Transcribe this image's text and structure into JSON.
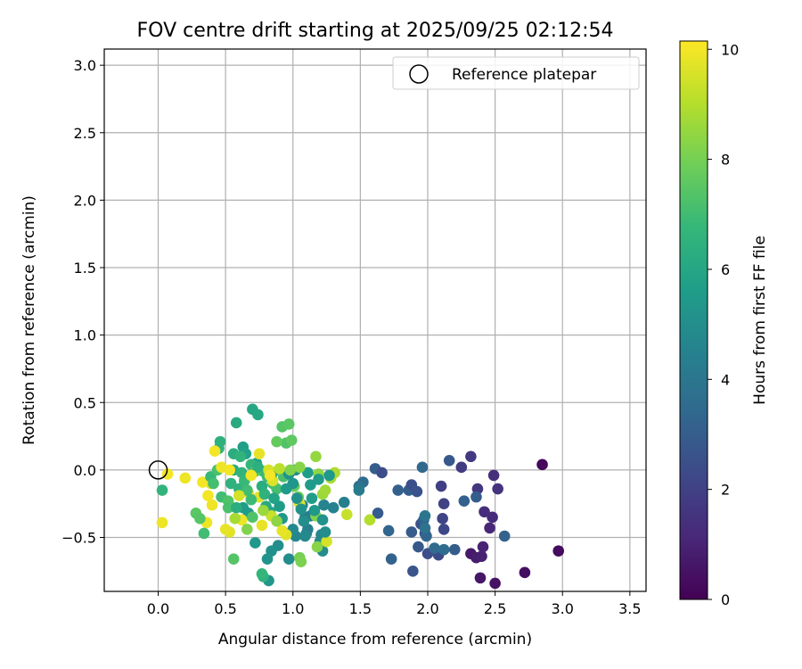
{
  "chart_data": {
    "type": "scatter",
    "title": "FOV centre drift starting at 2025/09/25 02:12:54",
    "xlabel": "Angular distance from reference (arcmin)",
    "ylabel": "Rotation from reference (arcmin)",
    "xlim": [
      -0.4,
      3.62
    ],
    "ylim": [
      -0.9,
      3.12
    ],
    "xticks": [
      0.0,
      0.5,
      1.0,
      1.5,
      2.0,
      2.5,
      3.0,
      3.5
    ],
    "xtick_labels": [
      "0.0",
      "0.5",
      "1.0",
      "1.5",
      "2.0",
      "2.5",
      "3.0",
      "3.5"
    ],
    "yticks": [
      -0.5,
      0.0,
      0.5,
      1.0,
      1.5,
      2.0,
      2.5,
      3.0
    ],
    "ytick_labels": [
      "−0.5",
      "0.0",
      "0.5",
      "1.0",
      "1.5",
      "2.0",
      "2.5",
      "3.0"
    ],
    "grid": true,
    "legend": {
      "position": "top-right",
      "label": "Reference platepar"
    },
    "reference_point": {
      "x": 0.0,
      "y": 0.0
    },
    "colorbar": {
      "label": "Hours from first FF file",
      "colormap": "viridis",
      "range": [
        0,
        10.15
      ],
      "ticks": [
        0,
        2,
        4,
        6,
        8,
        10
      ],
      "tick_labels": [
        "0",
        "2",
        "4",
        "6",
        "8",
        "10"
      ]
    },
    "colormap_stops": [
      "#440154",
      "#482878",
      "#3e4989",
      "#31688e",
      "#26828e",
      "#1f9e89",
      "#35b779",
      "#6ece58",
      "#b5de2b",
      "#fde725"
    ],
    "points": [
      [
        2.85,
        0.04,
        0.2
      ],
      [
        2.97,
        -0.6,
        0.3
      ],
      [
        2.72,
        -0.76,
        0.4
      ],
      [
        2.5,
        -0.84,
        0.5
      ],
      [
        2.39,
        -0.8,
        0.6
      ],
      [
        2.32,
        -0.62,
        0.7
      ],
      [
        2.36,
        -0.65,
        0.8
      ],
      [
        2.4,
        -0.64,
        0.9
      ],
      [
        2.41,
        -0.57,
        1.0
      ],
      [
        2.46,
        -0.43,
        1.1
      ],
      [
        2.48,
        -0.35,
        1.2
      ],
      [
        2.42,
        -0.31,
        1.3
      ],
      [
        2.49,
        -0.04,
        1.4
      ],
      [
        2.52,
        -0.14,
        1.5
      ],
      [
        2.37,
        -0.14,
        1.6
      ],
      [
        2.32,
        0.1,
        1.7
      ],
      [
        2.25,
        0.02,
        1.8
      ],
      [
        2.1,
        -0.12,
        1.9
      ],
      [
        2.12,
        -0.25,
        2.0
      ],
      [
        2.11,
        -0.36,
        2.1
      ],
      [
        2.12,
        -0.44,
        2.2
      ],
      [
        2.08,
        -0.63,
        2.3
      ],
      [
        2.0,
        -0.62,
        2.4
      ],
      [
        1.98,
        -0.47,
        2.5
      ],
      [
        1.95,
        -0.4,
        2.6
      ],
      [
        1.89,
        -0.75,
        2.7
      ],
      [
        1.93,
        -0.57,
        2.8
      ],
      [
        1.88,
        -0.46,
        2.9
      ],
      [
        1.86,
        -0.15,
        3.0
      ],
      [
        1.78,
        -0.15,
        3.1
      ],
      [
        1.73,
        -0.66,
        3.2
      ],
      [
        1.71,
        -0.45,
        3.3
      ],
      [
        1.96,
        0.02,
        3.4
      ],
      [
        1.63,
        -0.32,
        2.9
      ],
      [
        1.61,
        0.01,
        3.0
      ],
      [
        1.66,
        -0.02,
        2.4
      ],
      [
        1.88,
        -0.11,
        2.5
      ],
      [
        1.92,
        -0.16,
        2.6
      ],
      [
        1.97,
        -0.37,
        3.2
      ],
      [
        1.99,
        -0.49,
        3.3
      ],
      [
        2.05,
        -0.58,
        3.5
      ],
      [
        2.12,
        -0.59,
        3.6
      ],
      [
        2.16,
        0.07,
        2.8
      ],
      [
        2.2,
        -0.59,
        3.0
      ],
      [
        2.27,
        -0.23,
        3.1
      ],
      [
        2.36,
        -0.2,
        3.0
      ],
      [
        2.57,
        -0.49,
        3.2
      ],
      [
        1.98,
        -0.43,
        3.8
      ],
      [
        1.98,
        -0.34,
        4.0
      ],
      [
        1.52,
        -0.09,
        3.6
      ],
      [
        1.49,
        -0.12,
        3.8
      ],
      [
        1.49,
        -0.15,
        4.2
      ],
      [
        1.38,
        -0.24,
        4.4
      ],
      [
        1.3,
        -0.28,
        4.5
      ],
      [
        1.23,
        -0.26,
        4.6
      ],
      [
        1.21,
        -0.48,
        4.7
      ],
      [
        1.2,
        -0.53,
        4.8
      ],
      [
        1.22,
        -0.6,
        4.9
      ],
      [
        1.13,
        -0.34,
        4.2
      ],
      [
        1.11,
        -0.44,
        4.3
      ],
      [
        1.09,
        -0.35,
        4.4
      ],
      [
        1.1,
        -0.47,
        4.5
      ],
      [
        1.07,
        -0.26,
        4.6
      ],
      [
        1.02,
        -0.49,
        4.7
      ],
      [
        1.0,
        -0.44,
        4.8
      ],
      [
        0.97,
        -0.66,
        4.9
      ],
      [
        0.89,
        -0.56,
        5.0
      ],
      [
        0.84,
        -0.6,
        5.1
      ],
      [
        0.81,
        -0.66,
        5.2
      ],
      [
        0.82,
        -0.82,
        5.3
      ],
      [
        0.72,
        -0.54,
        5.4
      ],
      [
        0.67,
        -0.32,
        5.5
      ],
      [
        0.63,
        -0.28,
        5.6
      ],
      [
        0.63,
        0.17,
        5.7
      ],
      [
        0.65,
        0.12,
        5.8
      ],
      [
        0.73,
        0.05,
        5.9
      ],
      [
        0.7,
        0.45,
        6.0
      ],
      [
        0.74,
        0.41,
        6.1
      ],
      [
        0.58,
        0.35,
        6.2
      ],
      [
        0.56,
        0.12,
        6.3
      ],
      [
        0.46,
        0.21,
        6.4
      ],
      [
        0.45,
        0.16,
        6.5
      ],
      [
        0.61,
        0.1,
        6.6
      ],
      [
        0.69,
        0.04,
        6.7
      ],
      [
        0.78,
        -0.01,
        6.8
      ],
      [
        0.81,
        -0.05,
        6.9
      ],
      [
        0.85,
        -0.1,
        7.0
      ],
      [
        0.88,
        -0.14,
        7.1
      ],
      [
        0.93,
        -0.05,
        7.2
      ],
      [
        0.95,
        0.2,
        7.3
      ],
      [
        0.92,
        0.32,
        7.4
      ],
      [
        0.97,
        0.34,
        7.5
      ],
      [
        0.99,
        0.22,
        7.6
      ],
      [
        0.88,
        0.21,
        7.7
      ],
      [
        1.01,
        -0.12,
        7.8
      ],
      [
        1.04,
        -0.2,
        7.9
      ],
      [
        1.05,
        -0.65,
        8.0
      ],
      [
        1.06,
        -0.68,
        8.1
      ],
      [
        1.17,
        -0.34,
        8.2
      ],
      [
        1.18,
        -0.57,
        8.3
      ],
      [
        1.19,
        -0.03,
        8.4
      ],
      [
        1.17,
        0.1,
        8.5
      ],
      [
        1.22,
        -0.18,
        8.6
      ],
      [
        1.24,
        -0.15,
        8.7
      ],
      [
        1.28,
        -0.06,
        8.8
      ],
      [
        1.31,
        -0.02,
        8.9
      ],
      [
        1.57,
        -0.37,
        9.0
      ],
      [
        1.4,
        -0.33,
        9.3
      ],
      [
        1.25,
        -0.53,
        9.5
      ],
      [
        1.05,
        -0.25,
        9.6
      ],
      [
        0.95,
        -0.48,
        9.7
      ],
      [
        0.92,
        -0.45,
        9.8
      ],
      [
        0.85,
        -0.08,
        9.6
      ],
      [
        0.77,
        -0.41,
        9.8
      ],
      [
        0.75,
        -0.2,
        9.7
      ],
      [
        0.67,
        -0.17,
        9.8
      ],
      [
        0.62,
        -0.37,
        9.9
      ],
      [
        0.53,
        -0.46,
        9.7
      ],
      [
        0.5,
        -0.44,
        9.8
      ],
      [
        0.4,
        -0.26,
        9.9
      ],
      [
        0.37,
        -0.19,
        10.0
      ],
      [
        0.39,
        -0.1,
        9.8
      ],
      [
        0.33,
        -0.09,
        10.0
      ],
      [
        0.36,
        -0.39,
        9.9
      ],
      [
        0.2,
        -0.06,
        9.9
      ],
      [
        0.07,
        -0.03,
        10.0
      ],
      [
        0.03,
        -0.39,
        9.9
      ],
      [
        0.03,
        -0.15,
        6.6
      ],
      [
        0.28,
        -0.32,
        7.5
      ],
      [
        0.31,
        -0.36,
        7.4
      ],
      [
        0.34,
        -0.47,
        7.0
      ],
      [
        0.39,
        -0.05,
        6.8
      ],
      [
        0.41,
        -0.1,
        7.1
      ],
      [
        0.44,
        0.0,
        7.2
      ],
      [
        0.47,
        -0.2,
        7.0
      ],
      [
        0.52,
        -0.23,
        7.3
      ],
      [
        0.52,
        -0.28,
        7.2
      ],
      [
        0.54,
        -0.1,
        6.5
      ],
      [
        0.56,
        0.0,
        6.2
      ],
      [
        0.58,
        -0.28,
        6.3
      ],
      [
        0.6,
        -0.14,
        6.5
      ],
      [
        0.62,
        -0.02,
        6.6
      ],
      [
        0.64,
        -0.08,
        6.8
      ],
      [
        0.66,
        -0.15,
        7.0
      ],
      [
        0.69,
        -0.22,
        6.9
      ],
      [
        0.7,
        -0.35,
        7.3
      ],
      [
        0.72,
        -0.01,
        7.4
      ],
      [
        0.74,
        0.02,
        6.4
      ],
      [
        0.77,
        -0.12,
        6.3
      ],
      [
        0.79,
        -0.18,
        6.5
      ],
      [
        0.8,
        -0.27,
        6.2
      ],
      [
        0.83,
        -0.31,
        6.0
      ],
      [
        0.85,
        -0.02,
        5.8
      ],
      [
        0.86,
        -0.21,
        5.9
      ],
      [
        0.9,
        -0.27,
        5.6
      ],
      [
        0.92,
        -0.36,
        5.4
      ],
      [
        0.95,
        -0.14,
        5.5
      ],
      [
        0.97,
        -0.03,
        5.2
      ],
      [
        1.0,
        -0.1,
        5.3
      ],
      [
        1.02,
        0.0,
        5.0
      ],
      [
        1.03,
        -0.21,
        5.1
      ],
      [
        1.06,
        -0.29,
        5.2
      ],
      [
        1.08,
        -0.38,
        5.0
      ],
      [
        1.09,
        -0.49,
        4.8
      ],
      [
        1.11,
        -0.02,
        5.6
      ],
      [
        1.13,
        -0.11,
        5.5
      ],
      [
        1.14,
        -0.21,
        5.6
      ],
      [
        1.16,
        -0.3,
        5.4
      ],
      [
        1.19,
        -0.07,
        5.5
      ],
      [
        1.22,
        -0.37,
        5.2
      ],
      [
        1.24,
        -0.46,
        5.0
      ],
      [
        1.27,
        -0.04,
        5.4
      ],
      [
        0.56,
        -0.66,
        7.4
      ],
      [
        0.78,
        -0.79,
        6.5
      ],
      [
        0.77,
        -0.77,
        6.7
      ],
      [
        0.82,
        0.0,
        9.5
      ],
      [
        0.84,
        -0.34,
        9.3
      ],
      [
        0.9,
        0.01,
        9.1
      ],
      [
        0.98,
        0.0,
        8.2
      ],
      [
        1.05,
        0.02,
        8.3
      ],
      [
        0.42,
        0.14,
        10.0
      ],
      [
        0.53,
        0.0,
        10.0
      ],
      [
        0.47,
        0.02,
        9.9
      ],
      [
        0.69,
        -0.04,
        10.0
      ],
      [
        0.75,
        0.12,
        9.8
      ],
      [
        0.83,
        -0.04,
        10.0
      ],
      [
        0.6,
        -0.19,
        9.5
      ],
      [
        0.57,
        -0.36,
        8.8
      ],
      [
        0.78,
        -0.3,
        8.6
      ],
      [
        0.66,
        -0.44,
        8.2
      ],
      [
        0.88,
        -0.38,
        8.4
      ]
    ]
  }
}
